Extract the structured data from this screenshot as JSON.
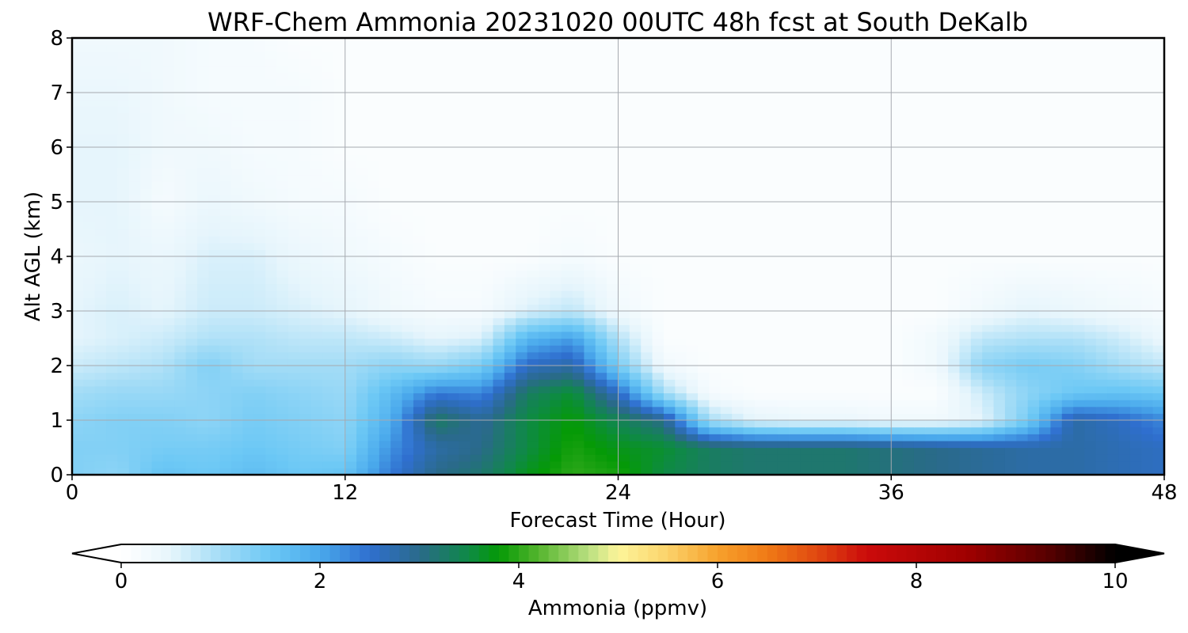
{
  "chart_data": {
    "type": "heatmap",
    "title": "WRF-Chem Ammonia  20231020 00UTC 48h fcst at South DeKalb",
    "xlabel": "Forecast Time (Hour)",
    "ylabel": "Alt AGL (km)",
    "xlim": [
      0,
      48
    ],
    "ylim": [
      0,
      8
    ],
    "x_ticks": [
      "0",
      "12",
      "24",
      "36",
      "48"
    ],
    "y_ticks": [
      "0",
      "1",
      "2",
      "3",
      "4",
      "5",
      "6",
      "7",
      "8"
    ],
    "grid": true,
    "x_hours": [
      0,
      2,
      4,
      6,
      8,
      10,
      12,
      14,
      16,
      18,
      20,
      22,
      24,
      26,
      28,
      30,
      32,
      34,
      36,
      38,
      40,
      42,
      44,
      46,
      48
    ],
    "y_km": [
      0,
      0.5,
      1,
      1.5,
      2,
      2.5,
      3,
      4,
      5,
      6,
      7,
      8
    ],
    "values": [
      [
        1.3,
        1.2,
        1.6,
        1.5,
        1.7,
        1.5,
        1.6,
        2.4,
        3.0,
        3.2,
        3.7,
        4.0,
        3.9,
        3.5,
        3.3,
        3.2,
        3.2,
        3.2,
        3.1,
        3.0,
        2.9,
        2.8,
        2.8,
        2.7,
        2.6
      ],
      [
        1.3,
        1.3,
        1.4,
        1.4,
        1.5,
        1.4,
        1.3,
        2.2,
        2.8,
        3.0,
        3.5,
        3.9,
        3.7,
        3.6,
        3.3,
        3.2,
        3.2,
        3.2,
        3.1,
        3.0,
        2.9,
        2.8,
        2.8,
        2.7,
        2.6
      ],
      [
        1.2,
        1.3,
        1.3,
        1.2,
        1.4,
        1.3,
        1.2,
        1.9,
        3.3,
        2.9,
        3.5,
        3.8,
        3.4,
        3.0,
        1.0,
        0.5,
        0.4,
        0.4,
        0.3,
        0.3,
        0.5,
        1.4,
        2.8,
        2.6,
        2.3
      ],
      [
        1.0,
        1.1,
        1.1,
        1.2,
        1.3,
        1.2,
        1.1,
        1.7,
        2.4,
        2.3,
        3.3,
        3.6,
        2.6,
        1.0,
        0.2,
        0.1,
        0.1,
        0.1,
        0.1,
        0.1,
        0.7,
        1.2,
        1.5,
        1.6,
        1.5
      ],
      [
        0.7,
        0.8,
        0.9,
        1.3,
        1.0,
        1.0,
        1.0,
        1.2,
        1.1,
        1.4,
        2.6,
        2.8,
        1.4,
        0.3,
        0.1,
        0.1,
        0.1,
        0.1,
        0.1,
        0.3,
        1.2,
        1.4,
        1.3,
        1.0,
        0.8
      ],
      [
        0.5,
        0.6,
        0.7,
        0.9,
        0.9,
        0.8,
        0.8,
        0.7,
        0.5,
        0.6,
        1.8,
        2.1,
        0.9,
        0.1,
        0.1,
        0.1,
        0.1,
        0.1,
        0.1,
        0.3,
        0.8,
        0.9,
        0.9,
        0.7,
        0.4
      ],
      [
        0.5,
        0.6,
        0.5,
        0.7,
        0.7,
        0.6,
        0.5,
        0.3,
        0.2,
        0.2,
        0.6,
        0.8,
        0.3,
        0.1,
        0.1,
        0.1,
        0.1,
        0.1,
        0.1,
        0.1,
        0.3,
        0.5,
        0.4,
        0.3,
        0.2
      ],
      [
        0.4,
        0.5,
        0.4,
        0.6,
        0.6,
        0.4,
        0.3,
        0.2,
        0.1,
        0.1,
        0.1,
        0.2,
        0.1,
        0.1,
        0.1,
        0.1,
        0.1,
        0.1,
        0.1,
        0.1,
        0.1,
        0.1,
        0.1,
        0.1,
        0.1
      ],
      [
        0.5,
        0.5,
        0.2,
        0.4,
        0.3,
        0.2,
        0.2,
        0.1,
        0.1,
        0.1,
        0.1,
        0.1,
        0.1,
        0.1,
        0.1,
        0.1,
        0.1,
        0.1,
        0.1,
        0.1,
        0.1,
        0.1,
        0.1,
        0.1,
        0.1
      ],
      [
        0.5,
        0.5,
        0.3,
        0.3,
        0.2,
        0.2,
        0.1,
        0.1,
        0.1,
        0.1,
        0.1,
        0.1,
        0.1,
        0.1,
        0.1,
        0.1,
        0.1,
        0.1,
        0.1,
        0.1,
        0.1,
        0.1,
        0.1,
        0.1,
        0.1
      ],
      [
        0.4,
        0.4,
        0.3,
        0.2,
        0.2,
        0.2,
        0.1,
        0.1,
        0.1,
        0.1,
        0.1,
        0.1,
        0.1,
        0.1,
        0.1,
        0.1,
        0.1,
        0.1,
        0.1,
        0.1,
        0.1,
        0.1,
        0.1,
        0.1,
        0.1
      ],
      [
        0.3,
        0.3,
        0.3,
        0.2,
        0.2,
        0.1,
        0.1,
        0.1,
        0.1,
        0.1,
        0.1,
        0.1,
        0.1,
        0.1,
        0.1,
        0.1,
        0.1,
        0.1,
        0.1,
        0.1,
        0.1,
        0.1,
        0.1,
        0.1,
        0.1
      ]
    ],
    "colorbar": {
      "label": "Ammonia  (ppmv)",
      "min": 0,
      "max": 10,
      "ticks": [
        "0",
        "2",
        "4",
        "6",
        "8",
        "10"
      ],
      "extend": "both",
      "stops": [
        {
          "v": 0.0,
          "c": "#ffffff"
        },
        {
          "v": 0.5,
          "c": "#e6f5fc"
        },
        {
          "v": 1.0,
          "c": "#a3dcf6"
        },
        {
          "v": 1.5,
          "c": "#6cc8f5"
        },
        {
          "v": 2.0,
          "c": "#4aa9ec"
        },
        {
          "v": 2.5,
          "c": "#2f6fcf"
        },
        {
          "v": 3.0,
          "c": "#2a6a8a"
        },
        {
          "v": 3.5,
          "c": "#0e8a45"
        },
        {
          "v": 3.8,
          "c": "#059a06"
        },
        {
          "v": 4.2,
          "c": "#55b52e"
        },
        {
          "v": 4.7,
          "c": "#b9df80"
        },
        {
          "v": 5.0,
          "c": "#fdf59a"
        },
        {
          "v": 5.5,
          "c": "#fbd26a"
        },
        {
          "v": 6.0,
          "c": "#f7a12c"
        },
        {
          "v": 6.5,
          "c": "#f07a16"
        },
        {
          "v": 7.0,
          "c": "#e04810"
        },
        {
          "v": 7.5,
          "c": "#cb0b0b"
        },
        {
          "v": 8.5,
          "c": "#a00000"
        },
        {
          "v": 9.3,
          "c": "#5a0000"
        },
        {
          "v": 10.0,
          "c": "#000000"
        }
      ]
    }
  }
}
